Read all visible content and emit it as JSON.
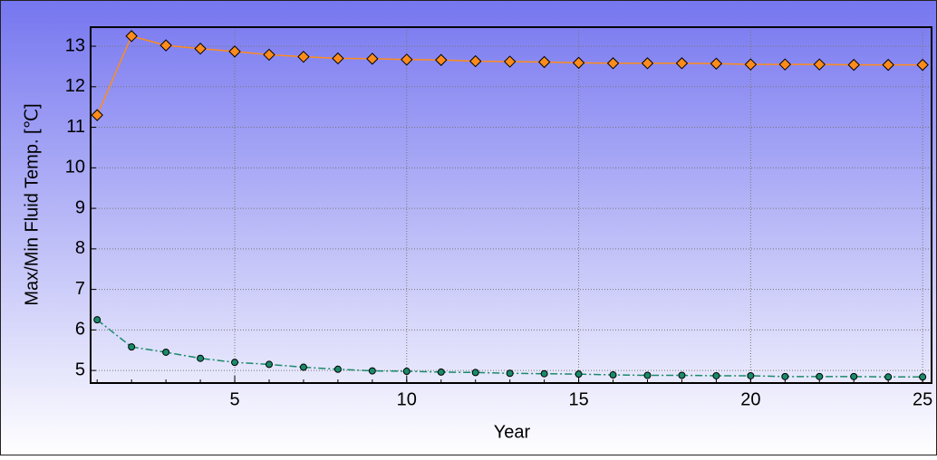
{
  "chart_data": {
    "type": "line",
    "x_label": "Year",
    "y_label": "Max/Min Fluid Temp. [℃]",
    "x": [
      1,
      2,
      3,
      4,
      5,
      6,
      7,
      8,
      9,
      10,
      11,
      12,
      13,
      14,
      15,
      16,
      17,
      18,
      19,
      20,
      21,
      22,
      23,
      24,
      25
    ],
    "series": [
      {
        "color": "#ff8c1a",
        "marker": "diamond",
        "dash": "solid",
        "values": [
          11.3,
          13.25,
          13.02,
          12.94,
          12.87,
          12.79,
          12.74,
          12.7,
          12.69,
          12.67,
          12.66,
          12.63,
          12.62,
          12.61,
          12.59,
          12.58,
          12.58,
          12.58,
          12.57,
          12.55,
          12.55,
          12.55,
          12.54,
          12.54,
          12.54
        ]
      },
      {
        "color": "#1a8a6a",
        "marker": "circle",
        "dash": "dashdot",
        "values": [
          6.25,
          5.58,
          5.45,
          5.3,
          5.2,
          5.15,
          5.08,
          5.03,
          4.99,
          4.98,
          4.96,
          4.95,
          4.93,
          4.92,
          4.91,
          4.89,
          4.88,
          4.88,
          4.87,
          4.87,
          4.85,
          4.85,
          4.85,
          4.84,
          4.84
        ]
      }
    ],
    "xlim": [
      0.81,
      25.26
    ],
    "xticks": [
      5,
      10,
      15,
      20,
      25
    ],
    "ylim": [
      4.69,
      13.47
    ],
    "yticks": [
      5,
      6,
      7,
      8,
      9,
      10,
      11,
      12,
      13
    ],
    "grid": true
  }
}
